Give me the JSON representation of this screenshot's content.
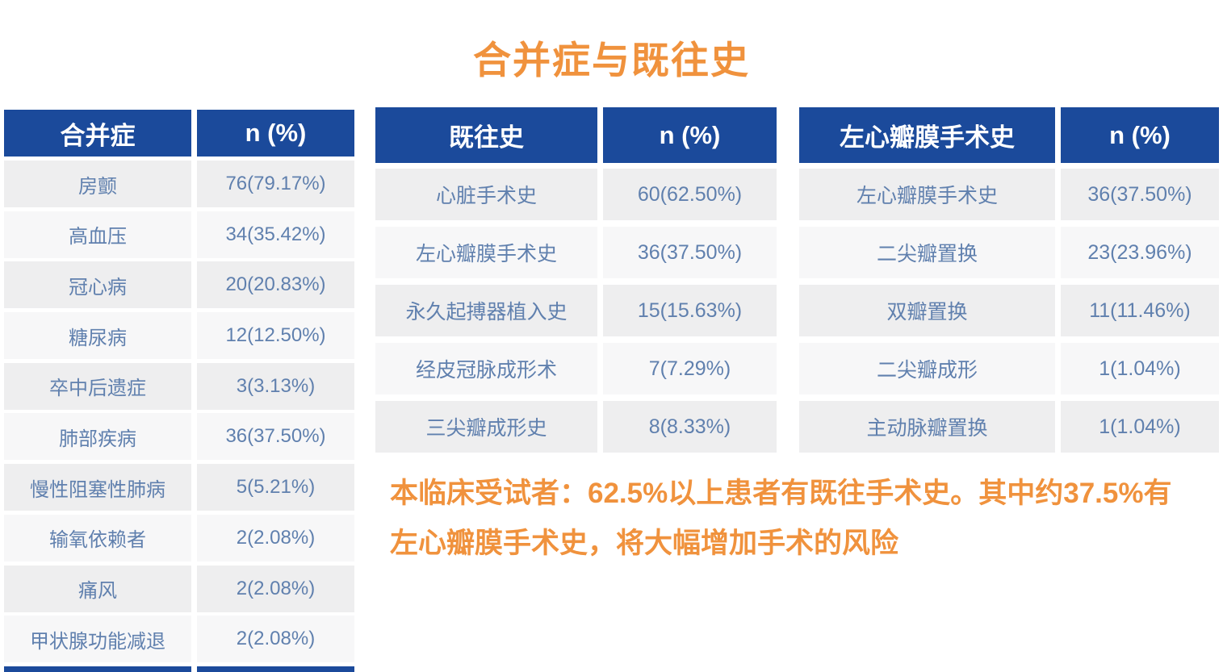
{
  "title": "合并症与既往史",
  "colors": {
    "header_bg": "#1B4A9B",
    "header_text": "#FFFFFF",
    "cell_text": "#6080AE",
    "row_bg_odd": "#EEEEEF",
    "row_bg_even": "#F7F7F8",
    "accent_orange": "#F0923D"
  },
  "chart_data": [
    {
      "type": "table",
      "title": "合并症",
      "columns": [
        "合并症",
        "n (%)"
      ],
      "rows": [
        [
          "房颤",
          "76(79.17%)"
        ],
        [
          "高血压",
          "34(35.42%)"
        ],
        [
          "冠心病",
          "20(20.83%)"
        ],
        [
          "糖尿病",
          "12(12.50%)"
        ],
        [
          "卒中后遗症",
          "3(3.13%)"
        ],
        [
          "肺部疾病",
          "36(37.50%)"
        ],
        [
          "慢性阻塞性肺病",
          "5(5.21%)"
        ],
        [
          "输氧依赖者",
          "2(2.08%)"
        ],
        [
          "痛风",
          "2(2.08%)"
        ],
        [
          "甲状腺功能减退",
          "2(2.08%)"
        ]
      ]
    },
    {
      "type": "table",
      "title": "既往史",
      "columns": [
        "既往史",
        "n (%)"
      ],
      "rows": [
        [
          "心脏手术史",
          "60(62.50%)"
        ],
        [
          "左心瓣膜手术史",
          "36(37.50%)"
        ],
        [
          "永久起搏器植入史",
          "15(15.63%)"
        ],
        [
          "经皮冠脉成形术",
          "7(7.29%)"
        ],
        [
          "三尖瓣成形史",
          "8(8.33%)"
        ]
      ]
    },
    {
      "type": "table",
      "title": "左心瓣膜手术史",
      "columns": [
        "左心瓣膜手术史",
        "n (%)"
      ],
      "rows": [
        [
          "左心瓣膜手术史",
          "36(37.50%)"
        ],
        [
          "二尖瓣置换",
          "23(23.96%)"
        ],
        [
          "双瓣置换",
          "11(11.46%)"
        ],
        [
          "二尖瓣成形",
          "1(1.04%)"
        ],
        [
          "主动脉瓣置换",
          "1(1.04%)"
        ]
      ]
    }
  ],
  "note": {
    "line1": "本临床受试者：62.5%以上患者有既往手术史。其中约37.5%有",
    "line2": "左心瓣膜手术史，将大幅增加手术的风险"
  }
}
